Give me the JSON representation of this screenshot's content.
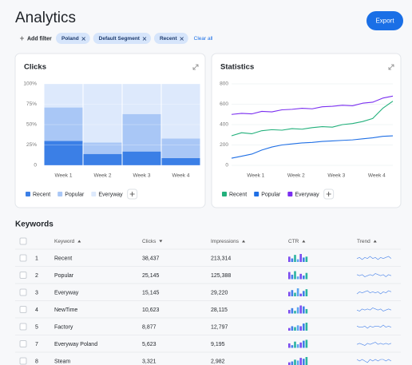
{
  "header": {
    "title": "Analytics",
    "export": "Export"
  },
  "filters": {
    "add": "Add filter",
    "chips": [
      "Poland",
      "Default Segment",
      "Recent"
    ],
    "clear": "Clear all"
  },
  "chart_data": [
    {
      "type": "bar",
      "stacked": true,
      "title": "Clicks",
      "categories": [
        "Week 1",
        "Week 2",
        "Week 3",
        "Week 4"
      ],
      "series": [
        {
          "name": "Recent",
          "color": "#3b7fe6",
          "values": [
            30,
            14,
            17,
            9
          ]
        },
        {
          "name": "Popular",
          "color": "#a9c7f6",
          "values": [
            41,
            14,
            46,
            24
          ]
        },
        {
          "name": "Everyway",
          "color": "#dde9fc",
          "values": [
            29,
            72,
            37,
            67
          ]
        }
      ],
      "ylim": [
        0,
        100
      ],
      "yticks": [
        0,
        {
          "value": 25,
          "label": "25%"
        },
        {
          "value": 50,
          "label": "50%"
        },
        {
          "value": 75,
          "label": "75%"
        },
        {
          "value": 100,
          "label": "100%"
        }
      ],
      "grid": true
    },
    {
      "type": "line",
      "title": "Statistics",
      "x": [
        0.4,
        0.65,
        0.9,
        1.15,
        1.4,
        1.65,
        1.9,
        2.15,
        2.4,
        2.65,
        2.9,
        3.15,
        3.4,
        3.65,
        3.9,
        4.15,
        4.4
      ],
      "xlim": [
        0.4,
        4.4
      ],
      "xticks": [
        {
          "value": 1,
          "label": "Week 1"
        },
        {
          "value": 2,
          "label": "Week 2"
        },
        {
          "value": 3,
          "label": "Week 3"
        },
        {
          "value": 4,
          "label": "Week 4"
        }
      ],
      "series": [
        {
          "name": "Recent",
          "color": "#22b07b",
          "values": [
            290,
            320,
            310,
            340,
            350,
            345,
            360,
            355,
            370,
            380,
            375,
            400,
            410,
            430,
            460,
            560,
            630
          ]
        },
        {
          "name": "Popular",
          "color": "#1f6fe5",
          "values": [
            70,
            90,
            110,
            150,
            180,
            200,
            210,
            220,
            225,
            235,
            240,
            245,
            250,
            260,
            270,
            285,
            290
          ]
        },
        {
          "name": "Everyway",
          "color": "#7a2ef0",
          "values": [
            500,
            510,
            505,
            530,
            525,
            545,
            550,
            560,
            555,
            575,
            580,
            590,
            585,
            610,
            620,
            660,
            680
          ]
        }
      ],
      "ylim": [
        0,
        800
      ],
      "yticks": [
        0,
        200,
        400,
        600,
        800
      ],
      "grid": true
    }
  ],
  "keywords": {
    "title": "Keywords",
    "columns": [
      "Keyword",
      "Clicks",
      "Impressions",
      "CTR",
      "Trend"
    ],
    "ctr_colors": [
      "#7a4cf0",
      "#3f7fe8",
      "#2bb3a0",
      "#5aa6f0"
    ],
    "rows": [
      {
        "num": 1,
        "keyword": "Recent",
        "clicks": "38,437",
        "impressions": "213,314",
        "ctr": [
          6,
          4,
          8,
          3,
          9,
          5,
          6
        ],
        "trend": [
          5,
          6,
          4,
          6,
          5,
          7,
          5,
          6,
          4,
          6,
          5,
          6,
          7,
          5
        ]
      },
      {
        "num": 2,
        "keyword": "Popular",
        "clicks": "25,145",
        "impressions": "125,388",
        "ctr": [
          8,
          5,
          9,
          3,
          6,
          4,
          7
        ],
        "trend": [
          6,
          5,
          6,
          4,
          5,
          6,
          5,
          7,
          6,
          5,
          6,
          4,
          6,
          5
        ]
      },
      {
        "num": 3,
        "keyword": "Everyway",
        "clicks": "15,145",
        "impressions": "29,220",
        "ctr": [
          5,
          7,
          4,
          9,
          3,
          6,
          8
        ],
        "trend": [
          4,
          6,
          5,
          6,
          7,
          5,
          6,
          5,
          6,
          4,
          6,
          5,
          7,
          6
        ]
      },
      {
        "num": 4,
        "keyword": "NewTime",
        "clicks": "10,623",
        "impressions": "28,115",
        "ctr": [
          4,
          6,
          3,
          7,
          9,
          8,
          5
        ],
        "trend": [
          5,
          4,
          6,
          5,
          6,
          5,
          7,
          6,
          5,
          6,
          4,
          5,
          6,
          5
        ]
      },
      {
        "num": 5,
        "keyword": "Factory",
        "clicks": "8,877",
        "impressions": "12,797",
        "ctr": [
          3,
          5,
          4,
          6,
          5,
          8,
          9
        ],
        "trend": [
          6,
          5,
          5,
          6,
          4,
          6,
          5,
          6,
          6,
          5,
          7,
          5,
          6,
          5
        ]
      },
      {
        "num": 7,
        "keyword": "Everyway Poland",
        "clicks": "5,623",
        "impressions": "9,195",
        "ctr": [
          5,
          3,
          7,
          4,
          6,
          8,
          9
        ],
        "trend": [
          5,
          6,
          5,
          4,
          6,
          5,
          6,
          7,
          5,
          6,
          5,
          6,
          5,
          6
        ]
      },
      {
        "num": 8,
        "keyword": "Steam",
        "clicks": "3,321",
        "impressions": "2,982",
        "ctr": [
          3,
          4,
          6,
          5,
          8,
          7,
          9
        ],
        "trend": [
          6,
          5,
          6,
          5,
          4,
          6,
          5,
          6,
          5,
          6,
          6,
          5,
          6,
          5
        ]
      }
    ]
  }
}
